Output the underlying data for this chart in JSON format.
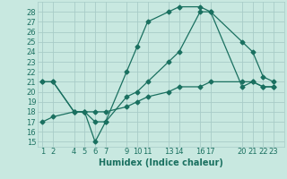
{
  "title": "",
  "xlabel": "Humidex (Indice chaleur)",
  "bg_color": "#c8e8e0",
  "grid_color": "#a8ccc8",
  "line_color": "#1a7060",
  "xticks": [
    1,
    2,
    4,
    5,
    6,
    7,
    9,
    10,
    11,
    13,
    14,
    16,
    17,
    20,
    21,
    22,
    23
  ],
  "yticks": [
    15,
    16,
    17,
    18,
    19,
    20,
    21,
    22,
    23,
    24,
    25,
    26,
    27,
    28
  ],
  "ylim": [
    14.5,
    29.0
  ],
  "xlim": [
    0.5,
    24.0
  ],
  "line1_x": [
    1,
    2,
    4,
    5,
    6,
    7,
    9,
    10,
    11,
    13,
    14,
    16,
    17,
    20,
    21,
    22,
    23
  ],
  "line1_y": [
    21.0,
    21.0,
    18.0,
    18.0,
    17.0,
    17.0,
    19.5,
    20.0,
    21.0,
    23.0,
    24.0,
    28.0,
    28.0,
    20.5,
    21.0,
    20.5,
    20.5
  ],
  "line2_x": [
    1,
    2,
    4,
    5,
    6,
    7,
    9,
    10,
    11,
    13,
    14,
    16,
    17,
    20,
    21,
    22,
    23
  ],
  "line2_y": [
    21.0,
    21.0,
    18.0,
    18.0,
    15.0,
    17.0,
    22.0,
    24.5,
    27.0,
    28.0,
    28.5,
    28.5,
    28.0,
    25.0,
    24.0,
    21.5,
    21.0
  ],
  "line3_x": [
    1,
    2,
    4,
    5,
    6,
    7,
    9,
    10,
    11,
    13,
    14,
    16,
    17,
    20,
    21,
    22,
    23
  ],
  "line3_y": [
    17.0,
    17.5,
    18.0,
    18.0,
    18.0,
    18.0,
    18.5,
    19.0,
    19.5,
    20.0,
    20.5,
    20.5,
    21.0,
    21.0,
    21.0,
    20.5,
    20.5
  ],
  "xlabel_fontsize": 7,
  "tick_fontsize": 6
}
